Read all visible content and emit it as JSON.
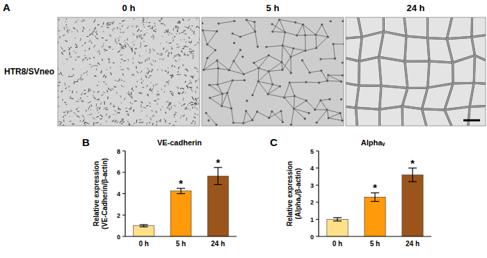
{
  "figure": {
    "panel_labels": [
      "A",
      "B",
      "C"
    ],
    "image_panel": {
      "row_label": "HTR8/SVneo",
      "columns": [
        "0 h",
        "5 h",
        "24 h"
      ]
    }
  },
  "chart_data": [
    {
      "type": "bar",
      "title": "VE-cadherin",
      "ylabel_lines": [
        "Relative expression",
        "(VE-Cadherin/β-actin)"
      ],
      "categories": [
        "0 h",
        "5 h",
        "24 h"
      ],
      "values": [
        1.0,
        4.25,
        5.65
      ],
      "errors": [
        0.1,
        0.25,
        0.8
      ],
      "colors": [
        "#ffe08a",
        "#ff9a0a",
        "#9b551a"
      ],
      "ylim": [
        0,
        8
      ],
      "yticks": [
        0,
        2,
        4,
        6,
        8
      ],
      "grid": false,
      "annotations": [
        {
          "x": "5 h",
          "text": "*"
        },
        {
          "x": "24 h",
          "text": "*"
        }
      ]
    },
    {
      "type": "bar",
      "title": "Alphaᵥ",
      "ylabel_lines": [
        "Relative expression",
        "(Alphaᵥ/β-actin)"
      ],
      "categories": [
        "0 h",
        "5 h",
        "24 h"
      ],
      "values": [
        1.0,
        2.3,
        3.6
      ],
      "errors": [
        0.1,
        0.25,
        0.4
      ],
      "colors": [
        "#ffe08a",
        "#ff9a0a",
        "#9b551a"
      ],
      "ylim": [
        0,
        5
      ],
      "yticks": [
        0,
        1,
        2,
        3,
        4,
        5
      ],
      "grid": false,
      "annotations": [
        {
          "x": "5 h",
          "text": "*"
        },
        {
          "x": "24 h",
          "text": "*"
        }
      ]
    }
  ]
}
